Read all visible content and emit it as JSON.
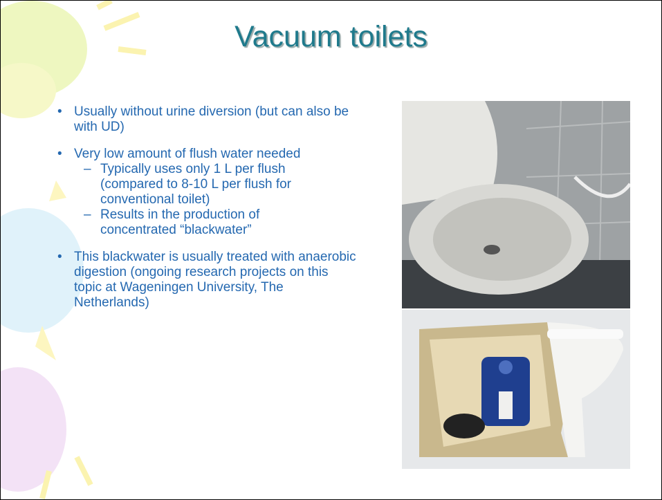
{
  "slide": {
    "title": "Vacuum toilets",
    "bullets": [
      {
        "text": "Usually without urine diversion (but can also be with UD)"
      },
      {
        "text": "Very low amount of flush water needed",
        "subbullets": [
          "Typically uses only 1 L per flush (compared to 8-10 L per flush for conventional toilet)",
          "Results in the production of concentrated “blackwater”"
        ]
      },
      {
        "text": "This blackwater is usually treated with anaerobic digestion (ongoing research projects on this topic at Wageningen University, The Netherlands)"
      }
    ]
  }
}
